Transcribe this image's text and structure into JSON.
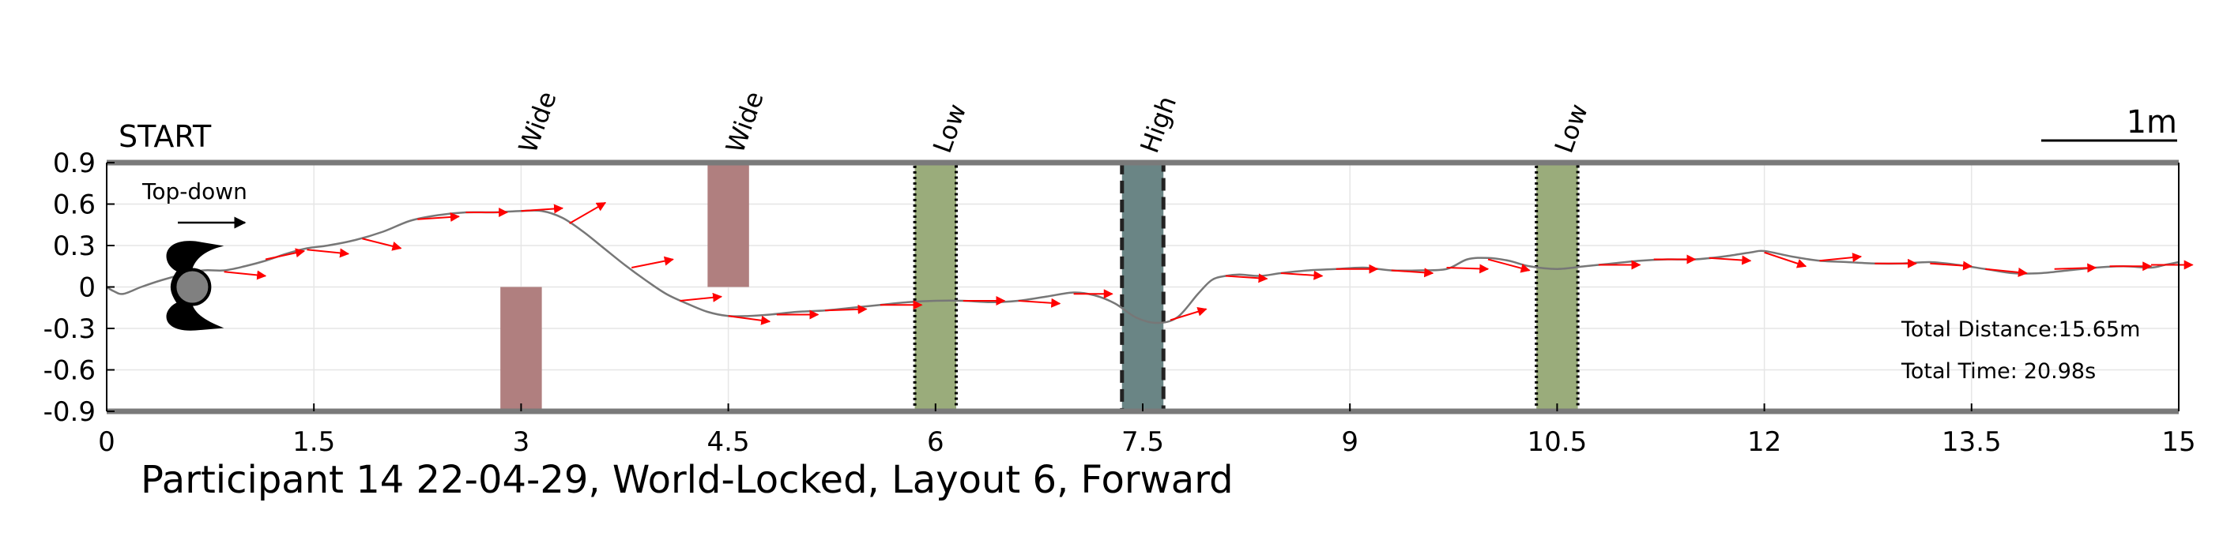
{
  "chart_data": {
    "type": "line",
    "title": "Participant 14 22-04-29, World-Locked, Layout 6, Forward",
    "start_label": "START",
    "direction_label": "Top-down",
    "scale_label": "1m",
    "xlim": [
      0,
      15
    ],
    "ylim": [
      -0.9,
      0.9
    ],
    "x_ticks": [
      0,
      1.5,
      3,
      4.5,
      6,
      7.5,
      9,
      10.5,
      12,
      13.5,
      15
    ],
    "x_tick_labels": [
      "0",
      "1.5",
      "3",
      "4.5",
      "6",
      "7.5",
      "9",
      "10.5",
      "12",
      "13.5",
      "15"
    ],
    "y_ticks": [
      0.9,
      0.6,
      0.3,
      0,
      -0.3,
      -0.6,
      -0.9
    ],
    "y_tick_labels": [
      "0.9",
      "0.6",
      "0.3",
      "0",
      "-0.3",
      "-0.6",
      "-0.9"
    ],
    "grid": true,
    "annotations": [
      {
        "label": "Total Distance:",
        "value": "15.65m"
      },
      {
        "label": "Total Time:",
        "value": "20.98s"
      }
    ],
    "obstacles": [
      {
        "type": "Wide",
        "x0": 2.85,
        "x1": 3.15,
        "y0": -0.9,
        "y1": 0.0,
        "color": "#b07f7f",
        "style": "solid"
      },
      {
        "type": "Wide",
        "x0": 4.35,
        "x1": 4.65,
        "y0": 0.0,
        "y1": 0.9,
        "color": "#b07f7f",
        "style": "solid"
      },
      {
        "type": "Low",
        "x0": 5.85,
        "x1": 6.15,
        "y0": -0.9,
        "y1": 0.9,
        "color": "#9aac7b",
        "style": "dotted"
      },
      {
        "type": "High",
        "x0": 7.35,
        "x1": 7.65,
        "y0": -0.9,
        "y1": 0.9,
        "color": "#6a8585",
        "style": "dashed"
      },
      {
        "type": "Low",
        "x0": 10.35,
        "x1": 10.65,
        "y0": -0.9,
        "y1": 0.9,
        "color": "#9aac7b",
        "style": "dotted"
      }
    ],
    "obstacle_label_x": [
      3.1,
      4.6,
      6.1,
      7.6,
      10.6
    ],
    "path": {
      "color": "#777777",
      "x": [
        0,
        0.05,
        0.12,
        0.25,
        0.4,
        0.55,
        0.7,
        0.85,
        1.0,
        1.15,
        1.3,
        1.45,
        1.6,
        1.8,
        2.0,
        2.2,
        2.4,
        2.6,
        2.8,
        3.0,
        3.15,
        3.3,
        3.45,
        3.6,
        3.75,
        3.9,
        4.05,
        4.2,
        4.35,
        4.5,
        4.65,
        4.8,
        5.0,
        5.2,
        5.4,
        5.6,
        5.8,
        6.0,
        6.2,
        6.4,
        6.6,
        6.8,
        7.0,
        7.15,
        7.3,
        7.45,
        7.6,
        7.75,
        7.9,
        8.0,
        8.1,
        8.2,
        8.35,
        8.5,
        8.7,
        8.9,
        9.1,
        9.3,
        9.5,
        9.7,
        9.85,
        10.0,
        10.15,
        10.3,
        10.5,
        10.7,
        10.9,
        11.1,
        11.3,
        11.5,
        11.7,
        11.9,
        12.0,
        12.2,
        12.4,
        12.6,
        12.8,
        13.0,
        13.2,
        13.4,
        13.6,
        13.8,
        14.0,
        14.2,
        14.4,
        14.6,
        14.8,
        14.9,
        15.0
      ],
      "y": [
        0.0,
        -0.03,
        -0.05,
        0.0,
        0.05,
        0.09,
        0.12,
        0.12,
        0.15,
        0.19,
        0.24,
        0.28,
        0.3,
        0.34,
        0.4,
        0.48,
        0.52,
        0.54,
        0.54,
        0.55,
        0.55,
        0.5,
        0.4,
        0.28,
        0.16,
        0.05,
        -0.05,
        -0.12,
        -0.18,
        -0.21,
        -0.21,
        -0.2,
        -0.18,
        -0.17,
        -0.15,
        -0.13,
        -0.11,
        -0.1,
        -0.1,
        -0.11,
        -0.1,
        -0.07,
        -0.04,
        -0.06,
        -0.12,
        -0.22,
        -0.26,
        -0.22,
        -0.05,
        0.05,
        0.08,
        0.09,
        0.08,
        0.1,
        0.12,
        0.13,
        0.14,
        0.12,
        0.12,
        0.13,
        0.2,
        0.21,
        0.19,
        0.15,
        0.13,
        0.15,
        0.17,
        0.19,
        0.2,
        0.2,
        0.22,
        0.25,
        0.26,
        0.22,
        0.19,
        0.18,
        0.17,
        0.17,
        0.18,
        0.16,
        0.13,
        0.1,
        0.1,
        0.12,
        0.14,
        0.15,
        0.14,
        0.16,
        0.18
      ]
    },
    "heading_arrows": {
      "color": "#ff0000",
      "items": [
        {
          "x": 0.85,
          "y": 0.11,
          "dx": 0.3,
          "dy": -0.03
        },
        {
          "x": 1.15,
          "y": 0.2,
          "dx": 0.28,
          "dy": 0.06
        },
        {
          "x": 1.45,
          "y": 0.27,
          "dx": 0.3,
          "dy": -0.03
        },
        {
          "x": 1.85,
          "y": 0.35,
          "dx": 0.28,
          "dy": -0.07
        },
        {
          "x": 2.25,
          "y": 0.49,
          "dx": 0.3,
          "dy": 0.02
        },
        {
          "x": 2.6,
          "y": 0.54,
          "dx": 0.3,
          "dy": 0.0
        },
        {
          "x": 3.0,
          "y": 0.55,
          "dx": 0.3,
          "dy": 0.02
        },
        {
          "x": 3.35,
          "y": 0.46,
          "dx": 0.26,
          "dy": 0.15
        },
        {
          "x": 3.8,
          "y": 0.14,
          "dx": 0.3,
          "dy": 0.06
        },
        {
          "x": 4.15,
          "y": -0.1,
          "dx": 0.3,
          "dy": 0.03
        },
        {
          "x": 4.5,
          "y": -0.21,
          "dx": 0.3,
          "dy": -0.04
        },
        {
          "x": 4.85,
          "y": -0.2,
          "dx": 0.3,
          "dy": 0.0
        },
        {
          "x": 5.2,
          "y": -0.17,
          "dx": 0.3,
          "dy": 0.01
        },
        {
          "x": 5.6,
          "y": -0.13,
          "dx": 0.3,
          "dy": 0.0
        },
        {
          "x": 6.2,
          "y": -0.1,
          "dx": 0.3,
          "dy": 0.0
        },
        {
          "x": 6.6,
          "y": -0.1,
          "dx": 0.3,
          "dy": -0.02
        },
        {
          "x": 7.0,
          "y": -0.05,
          "dx": 0.28,
          "dy": 0.0
        },
        {
          "x": 7.7,
          "y": -0.24,
          "dx": 0.26,
          "dy": 0.08
        },
        {
          "x": 8.1,
          "y": 0.08,
          "dx": 0.3,
          "dy": -0.02
        },
        {
          "x": 8.5,
          "y": 0.1,
          "dx": 0.3,
          "dy": -0.02
        },
        {
          "x": 8.9,
          "y": 0.13,
          "dx": 0.3,
          "dy": 0.0
        },
        {
          "x": 9.3,
          "y": 0.12,
          "dx": 0.3,
          "dy": -0.02
        },
        {
          "x": 9.7,
          "y": 0.14,
          "dx": 0.3,
          "dy": -0.01
        },
        {
          "x": 10.0,
          "y": 0.2,
          "dx": 0.3,
          "dy": -0.08
        },
        {
          "x": 10.8,
          "y": 0.16,
          "dx": 0.3,
          "dy": 0.0
        },
        {
          "x": 11.2,
          "y": 0.2,
          "dx": 0.3,
          "dy": 0.0
        },
        {
          "x": 11.6,
          "y": 0.21,
          "dx": 0.3,
          "dy": -0.02
        },
        {
          "x": 12.0,
          "y": 0.25,
          "dx": 0.3,
          "dy": -0.1
        },
        {
          "x": 12.4,
          "y": 0.19,
          "dx": 0.3,
          "dy": 0.03
        },
        {
          "x": 12.8,
          "y": 0.17,
          "dx": 0.3,
          "dy": 0.0
        },
        {
          "x": 13.2,
          "y": 0.17,
          "dx": 0.3,
          "dy": -0.02
        },
        {
          "x": 13.6,
          "y": 0.13,
          "dx": 0.3,
          "dy": -0.03
        },
        {
          "x": 14.1,
          "y": 0.13,
          "dx": 0.3,
          "dy": 0.01
        },
        {
          "x": 14.5,
          "y": 0.15,
          "dx": 0.3,
          "dy": 0.0
        },
        {
          "x": 14.8,
          "y": 0.16,
          "dx": 0.3,
          "dy": 0.0
        }
      ]
    },
    "avatar": {
      "x": 0.62,
      "y": 0.0
    }
  }
}
